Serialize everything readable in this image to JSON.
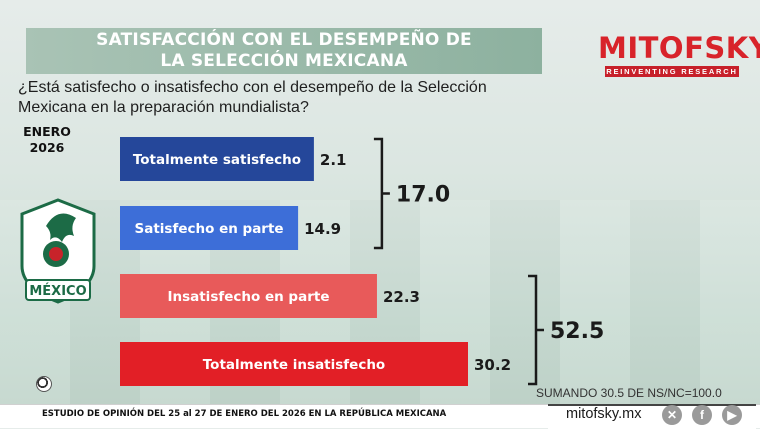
{
  "title_lines": [
    "SATISFACCIÓN CON EL DESEMPEÑO DE",
    "LA SELECCIÓN MEXICANA"
  ],
  "brand": {
    "name": "MITOFSKY",
    "tagline": "REINVENTING RESEARCH"
  },
  "question": "¿Está satisfecho o insatisfecho con el desempeño de la Selección Mexicana en la preparación mundialista?",
  "period_lines": [
    "ENERO",
    "2026"
  ],
  "logo_text": "MÉXICO",
  "chart_data": {
    "type": "bar",
    "orientation": "horizontal",
    "categories": [
      "Totalmente satisfecho",
      "Satisfecho en parte",
      "Insatisfecho en parte",
      "Totalmente insatisfecho"
    ],
    "values": [
      2.1,
      14.9,
      22.3,
      30.2
    ],
    "value_labels": [
      "2.1",
      "14.9",
      "22.3",
      "30.2"
    ],
    "colors": [
      "#25479a",
      "#3d6ed8",
      "#e85a5a",
      "#e21f26"
    ],
    "groups": [
      {
        "label": "17.0",
        "value": 17.0,
        "members": [
          0,
          1
        ]
      },
      {
        "label": "52.5",
        "value": 52.5,
        "members": [
          2,
          3
        ]
      }
    ],
    "xlim": [
      0,
      30.2
    ]
  },
  "note": "SUMANDO 30.5 DE NS/NC=100.0",
  "footer": {
    "source": "ESTUDIO DE OPINIÓN DEL 25 al 27 DE ENERO DEL 2026 EN LA REPÚBLICA MEXICANA",
    "site": "mitofsky.mx",
    "social_icons": [
      "x-icon",
      "facebook-icon",
      "youtube-icon"
    ]
  }
}
